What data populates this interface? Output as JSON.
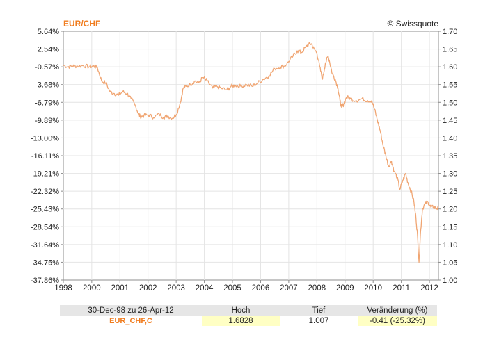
{
  "chart_data": {
    "type": "line",
    "title": "EUR/CHF",
    "source": "© Swissquote",
    "x_range": [
      1998.99,
      2012.32
    ],
    "x_ticks": [
      "1998",
      "2000",
      "2001",
      "2002",
      "2003",
      "2004",
      "2005",
      "2006",
      "2007",
      "2008",
      "2009",
      "2010",
      "2011",
      "2012"
    ],
    "y_right": {
      "range": [
        1.0,
        1.7
      ],
      "ticks": [
        "1.70",
        "1.65",
        "1.60",
        "1.55",
        "1.50",
        "1.45",
        "1.40",
        "1.35",
        "1.30",
        "1.25",
        "1.20",
        "1.15",
        "1.10",
        "1.05",
        "1.00"
      ]
    },
    "y_left": {
      "ticks": [
        "5.64%",
        "2.54%",
        "-0.57%",
        "-3.68%",
        "-6.79%",
        "-9.89%",
        "-13.00%",
        "-16.11%",
        "-19.21%",
        "-22.32%",
        "-25.43%",
        "-28.54%",
        "-31.64%",
        "-34.75%",
        "-37.86%"
      ]
    },
    "grid": true,
    "color": "#f0a572",
    "series": [
      {
        "x": [
          1998.99,
          1999.15,
          1999.3,
          1999.5,
          1999.7,
          1999.9,
          2000.05,
          2000.2,
          2000.35,
          2000.5,
          2000.65,
          2000.8,
          2000.95,
          2001.1,
          2001.25,
          2001.4,
          2001.55,
          2001.65,
          2001.72,
          2001.85,
          2002.0,
          2002.2,
          2002.4,
          2002.55,
          2002.7,
          2002.85,
          2003.0,
          2003.15,
          2003.25,
          2003.35,
          2003.5,
          2003.65,
          2003.8,
          2003.95,
          2004.1,
          2004.3,
          2004.45,
          2004.6,
          2004.8,
          2004.95,
          2005.1,
          2005.3,
          2005.5,
          2005.7,
          2005.9,
          2006.1,
          2006.3,
          2006.5,
          2006.7,
          2006.85,
          2007.0,
          2007.15,
          2007.3,
          2007.45,
          2007.6,
          2007.7,
          2007.8,
          2007.9,
          2008.0,
          2008.1,
          2008.2,
          2008.3,
          2008.4,
          2008.45,
          2008.55,
          2008.65,
          2008.75,
          2008.82,
          2008.88,
          2008.95,
          2009.05,
          2009.2,
          2009.4,
          2009.6,
          2009.8,
          2009.95,
          2010.05,
          2010.15,
          2010.25,
          2010.35,
          2010.45,
          2010.55,
          2010.65,
          2010.75,
          2010.85,
          2010.95,
          2011.05,
          2011.15,
          2011.25,
          2011.35,
          2011.45,
          2011.52,
          2011.58,
          2011.63,
          2011.68,
          2011.75,
          2011.85,
          2011.95,
          2012.05,
          2012.15,
          2012.25,
          2012.32
        ],
        "y": [
          1.605,
          1.6,
          1.603,
          1.602,
          1.604,
          1.6,
          1.602,
          1.598,
          1.56,
          1.555,
          1.53,
          1.525,
          1.52,
          1.53,
          1.525,
          1.51,
          1.49,
          1.47,
          1.46,
          1.462,
          1.465,
          1.458,
          1.467,
          1.458,
          1.462,
          1.455,
          1.465,
          1.5,
          1.54,
          1.545,
          1.55,
          1.56,
          1.555,
          1.57,
          1.56,
          1.54,
          1.545,
          1.54,
          1.535,
          1.545,
          1.548,
          1.545,
          1.55,
          1.545,
          1.555,
          1.565,
          1.575,
          1.595,
          1.6,
          1.602,
          1.615,
          1.63,
          1.645,
          1.64,
          1.655,
          1.663,
          1.665,
          1.65,
          1.64,
          1.6,
          1.565,
          1.61,
          1.63,
          1.615,
          1.58,
          1.565,
          1.54,
          1.505,
          1.485,
          1.495,
          1.515,
          1.51,
          1.505,
          1.51,
          1.505,
          1.505,
          1.48,
          1.45,
          1.42,
          1.38,
          1.35,
          1.32,
          1.335,
          1.305,
          1.29,
          1.255,
          1.28,
          1.3,
          1.27,
          1.25,
          1.22,
          1.175,
          1.12,
          1.05,
          1.13,
          1.2,
          1.215,
          1.22,
          1.205,
          1.205,
          1.202,
          1.201
        ]
      }
    ],
    "stats": {
      "period": "30-Dec-98 zu 26-Apr-12",
      "symbol": "EUR_CHF,C",
      "high_label": "Hoch",
      "high": "1.6828",
      "low_label": "Tief",
      "low": "1.007",
      "change_label": "Veränderung (%)",
      "change": "-0.41 (-25.32%)"
    }
  }
}
